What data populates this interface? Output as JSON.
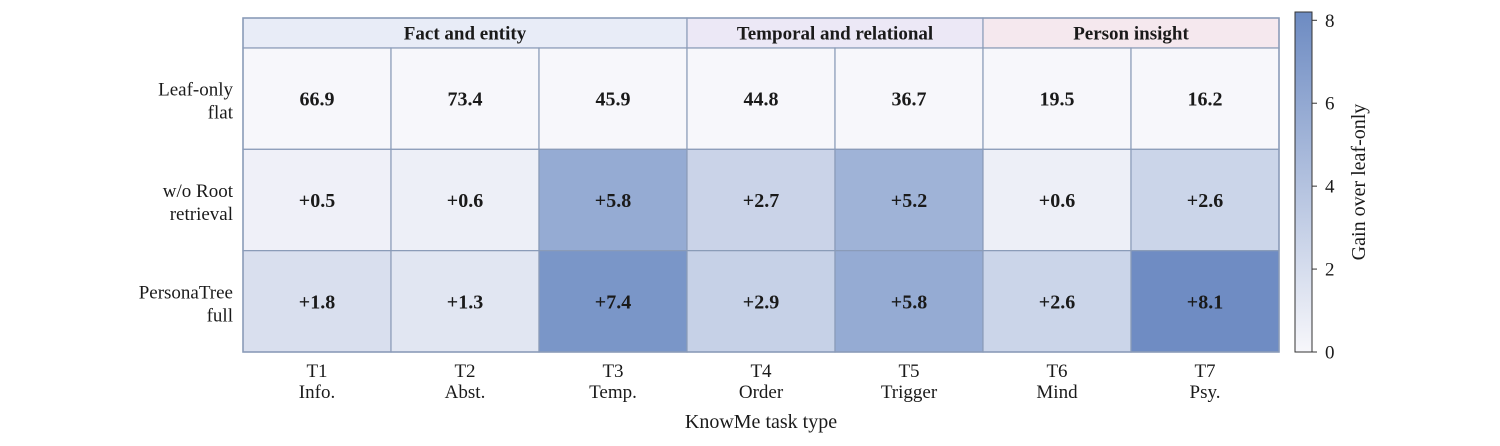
{
  "chart_data": {
    "type": "heatmap",
    "groups": [
      {
        "label": "Fact and entity",
        "span": 3,
        "color": "#e8ecf7"
      },
      {
        "label": "Temporal and relational",
        "span": 2,
        "color": "#ece8f6"
      },
      {
        "label": "Person insight",
        "span": 2,
        "color": "#f5e8ee"
      }
    ],
    "columns": [
      {
        "id": "T1",
        "name": "Info."
      },
      {
        "id": "T2",
        "name": "Abst."
      },
      {
        "id": "T3",
        "name": "Temp."
      },
      {
        "id": "T4",
        "name": "Order"
      },
      {
        "id": "T5",
        "name": "Trigger"
      },
      {
        "id": "T6",
        "name": "Mind"
      },
      {
        "id": "T7",
        "name": "Psy."
      }
    ],
    "rows": [
      {
        "label_lines": [
          "Leaf-only",
          "flat"
        ],
        "labels": [
          "66.9",
          "73.4",
          "45.9",
          "44.8",
          "36.7",
          "19.5",
          "16.2"
        ],
        "gain": [
          0,
          0,
          0,
          0,
          0,
          0,
          0
        ]
      },
      {
        "label_lines": [
          "w/o Root",
          "retrieval"
        ],
        "labels": [
          "+0.5",
          "+0.6",
          "+5.8",
          "+2.7",
          "+5.2",
          "+0.6",
          "+2.6"
        ],
        "gain": [
          0.5,
          0.6,
          5.8,
          2.7,
          5.2,
          0.6,
          2.6
        ]
      },
      {
        "label_lines": [
          "PersonaTree",
          "full"
        ],
        "labels": [
          "+1.8",
          "+1.3",
          "+7.4",
          "+2.9",
          "+5.8",
          "+2.6",
          "+8.1"
        ],
        "gain": [
          1.8,
          1.3,
          7.4,
          2.9,
          5.8,
          2.6,
          8.1
        ]
      }
    ],
    "xlabel": "KnowMe task type",
    "colorbar": {
      "label": "Gain over leaf-only",
      "min": 0,
      "max": 8.2,
      "ticks": [
        0,
        2,
        4,
        6,
        8
      ],
      "color_low": "#f7f7fb",
      "color_high": "#6d8bc2"
    },
    "grid_color": "#8a9bb8"
  }
}
